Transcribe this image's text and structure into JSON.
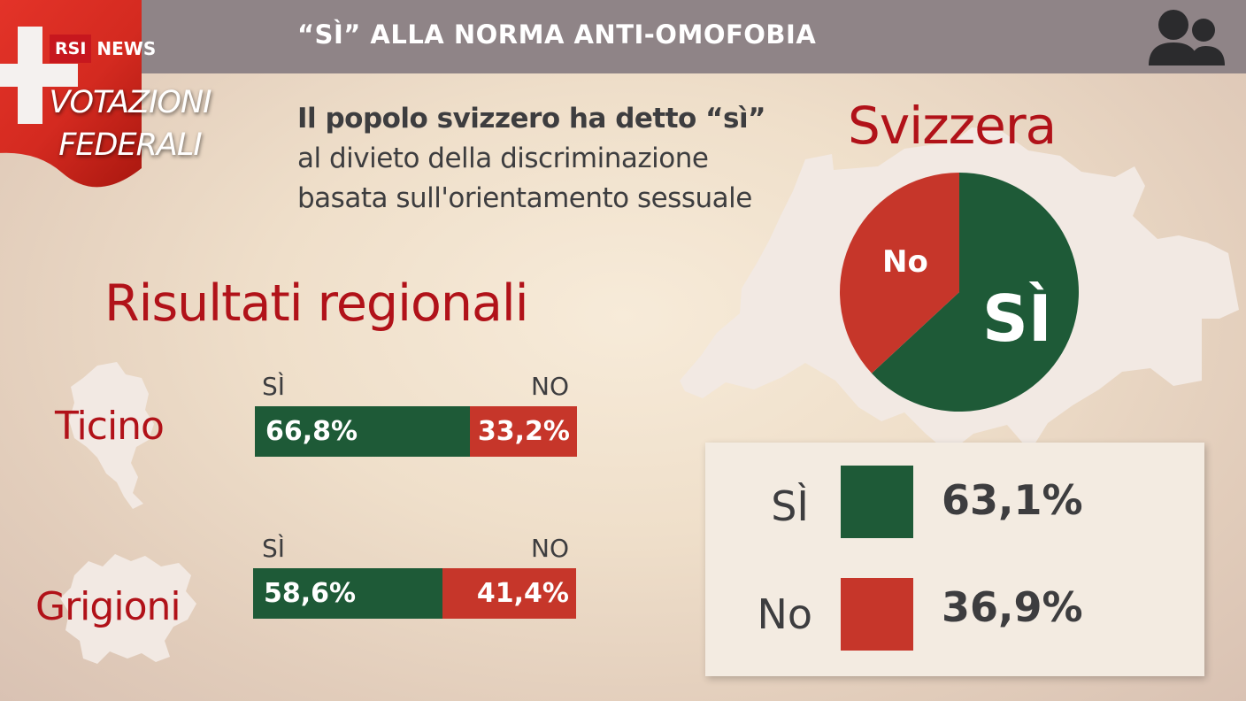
{
  "header": {
    "logo_rsi": "RSI",
    "logo_news": "NEWS",
    "section_line1": "VOTAZIONI",
    "section_line2": "FEDERALI",
    "headline": "“SÌ” ALLA NORMA ANTI-OMOFOBIA",
    "icon": "people-icon"
  },
  "intro": {
    "bold_text": "Il popolo svizzero ha detto “sì”",
    "rest_text": "al divieto della discriminazione basata sull'orientamento sessuale"
  },
  "colors": {
    "yes": "#1e5a37",
    "no": "#c6362a",
    "title_red": "#b11219",
    "topbar": "#8f8487"
  },
  "chart_data": [
    {
      "type": "bar",
      "title": "Risultati regionali",
      "orientation": "horizontal-stacked",
      "series_labels": [
        "SÌ",
        "NO"
      ],
      "regions": [
        {
          "name": "Ticino",
          "yes": 66.8,
          "no": 33.2,
          "yes_label": "66,8%",
          "no_label": "33,2%"
        },
        {
          "name": "Grigioni",
          "yes": 58.6,
          "no": 41.4,
          "yes_label": "58,6%",
          "no_label": "41,4%"
        }
      ]
    },
    {
      "type": "pie",
      "title": "Svizzera",
      "slices": [
        {
          "label": "SÌ",
          "value": 63.1,
          "display": "63,1%"
        },
        {
          "label": "No",
          "value": 36.9,
          "display": "36,9%"
        }
      ]
    }
  ]
}
